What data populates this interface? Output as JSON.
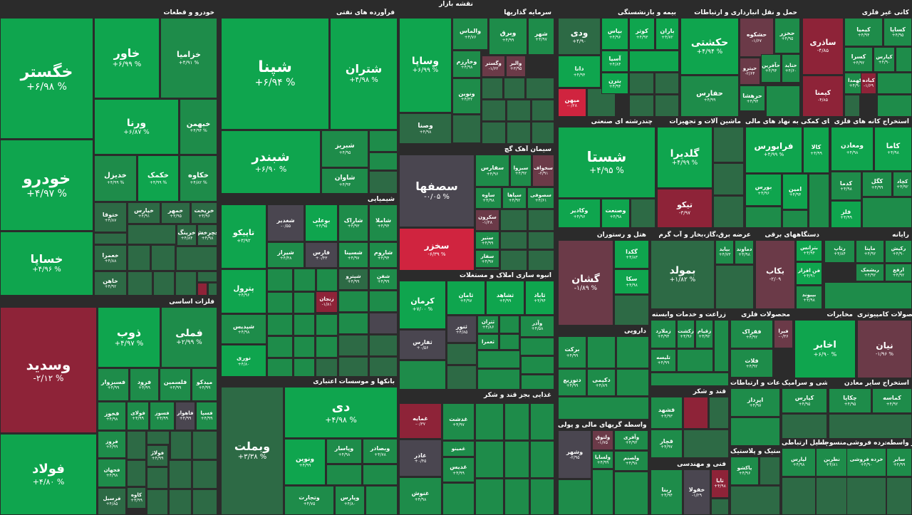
{
  "map_title": "نقشه بازار",
  "colors": {
    "up_strong": "#0fa54e",
    "up_medium": "#1e8c4a",
    "up_weak": "#2d6a45",
    "flat": "#4a4650",
    "down_weak": "#6b3a48",
    "down_medium": "#8e2338",
    "down_strong": "#d0243f",
    "background": "#2b2b2b"
  },
  "chart_data": {
    "type": "heatmap",
    "title": "نقشه بازار",
    "sectors": [
      {
        "name": "خودرو و قطعات",
        "symbols": [
          {
            "name": "خگستر",
            "change": "+۶/۹۸ %"
          },
          {
            "name": "خودرو",
            "change": "+۴/۹۷ %"
          },
          {
            "name": "خساپا",
            "change": "+۴/۹۶ %"
          },
          {
            "name": "خاور",
            "change": "+۶/۹۹ %"
          },
          {
            "name": "خزامیا",
            "change": "+۴/۹۱ %"
          },
          {
            "name": "ورنا",
            "change": "+۶/۸۷ %"
          },
          {
            "name": "خبهمن",
            "change": "+۴/۹۴ %"
          },
          {
            "name": "خدیزل",
            "change": "+۴/۹۹ %"
          },
          {
            "name": "خکمک",
            "change": "+۴/۹۹ %"
          },
          {
            "name": "خکاوه",
            "change": "+۴/۸۲ %"
          },
          {
            "name": "ختوقا",
            "change": "+۴/۸۷"
          },
          {
            "name": "خپارس",
            "change": "+۴/۹۱"
          },
          {
            "name": "خمهر",
            "change": "+۴/۹۵"
          },
          {
            "name": "خریخت",
            "change": "+۴/۹۶"
          },
          {
            "name": "خچرخش",
            "change": "+۴/۹۸"
          },
          {
            "name": "خرینگ",
            "change": "+۴/۸۴"
          },
          {
            "name": "خعمرا",
            "change": "+۴/۸۸"
          },
          {
            "name": "خاهن",
            "change": "+۴/۹۲"
          }
        ]
      },
      {
        "name": "فرآورده های نفتی",
        "symbols": [
          {
            "name": "شپنا",
            "change": "+۶/۹۴ %"
          },
          {
            "name": "شبندر",
            "change": "+۶/۹۰ %"
          },
          {
            "name": "شتران",
            "change": "+۴/۹۸ %"
          },
          {
            "name": "شبریز",
            "change": "+۴/۹۵"
          },
          {
            "name": "شاوان",
            "change": "+۴/۹۴"
          }
        ]
      },
      {
        "name": "سرمایه گذاریها",
        "symbols": [
          {
            "name": "وساپا",
            "change": "+۶/۹۹ %"
          },
          {
            "name": "وصنا",
            "change": "+۴/۹۸"
          },
          {
            "name": "والماس",
            "change": "+۴/۷۶"
          },
          {
            "name": "وبرق",
            "change": "+۴/۹۹"
          },
          {
            "name": "شهر",
            "change": "+۴/۹۷"
          },
          {
            "name": "وخارزم",
            "change": "+۴/۹۸"
          },
          {
            "name": "وگستر",
            "change": "-۱/۶۲"
          },
          {
            "name": "والبر",
            "change": "+۳/۹۵"
          },
          {
            "name": "ونوین",
            "change": "+۴/۳۲"
          },
          {
            "name": "صبا",
            "change": "+۴/۱۶"
          }
        ]
      },
      {
        "name": "بیمه و بازنشستگی",
        "symbols": [
          {
            "name": "ودی",
            "change": "+۴/۹۰"
          },
          {
            "name": "بپاس",
            "change": "+۴/۹۶"
          },
          {
            "name": "کوثر",
            "change": "+۴/۹۳"
          },
          {
            "name": "باران",
            "change": "+۴/۷۲"
          },
          {
            "name": "آسیا",
            "change": "+۴/۸۴"
          },
          {
            "name": "دانا",
            "change": "+۴/۹۴"
          },
          {
            "name": "بترن",
            "change": "+۴/۹۴"
          },
          {
            "name": "میهن",
            "change": "-۰/۲۸"
          }
        ]
      },
      {
        "name": "حمل و نقل انبارداری و ارتباطات",
        "symbols": [
          {
            "name": "حکشتی",
            "change": "+۴/۹۴ %"
          },
          {
            "name": "حفارس",
            "change": "+۴/۹۹"
          },
          {
            "name": "حشکوه",
            "change": "-۱/۶۷"
          },
          {
            "name": "حخزر",
            "change": "+۴/۹۵"
          },
          {
            "name": "حتاید",
            "change": "+۴/۶۰"
          },
          {
            "name": "حآفرین",
            "change": "+۴/۹۴"
          },
          {
            "name": "حپترو",
            "change": "-۲/۶۴"
          },
          {
            "name": "حرهشا",
            "change": "+۴/۹۴"
          }
        ]
      },
      {
        "name": "کانی غیر فلزی",
        "symbols": [
          {
            "name": "ساذری",
            "change": "-۴/۸۵"
          },
          {
            "name": "کیمنا",
            "change": "-۴/۸۵"
          },
          {
            "name": "کیمیا",
            "change": "+۴/۹۴"
          },
          {
            "name": "کساپا",
            "change": "+۴/۹۵"
          },
          {
            "name": "کسرا",
            "change": "+۴/۹۲"
          },
          {
            "name": "کهمدا",
            "change": "+۴/۹۰"
          },
          {
            "name": "کپارس",
            "change": "+۴/۹۰"
          },
          {
            "name": "کباده",
            "change": "-۱/۶۹"
          }
        ]
      },
      {
        "name": "سیمان آهک گچ",
        "symbols": [
          {
            "name": "سصفها",
            "change": "-۰/۰۵ %"
          },
          {
            "name": "سخزر",
            "change": "-۶/۳۹ %"
          },
          {
            "name": "سفارس",
            "change": "+۴/۹۶"
          },
          {
            "name": "سبزوا",
            "change": "+۴/۹۲"
          },
          {
            "name": "سخواف",
            "change": "-۲/۹۱"
          },
          {
            "name": "ساوه",
            "change": "+۴/۹۸"
          },
          {
            "name": "سپاها",
            "change": "+۴/۹۲"
          },
          {
            "name": "سصوفی",
            "change": "+۴/۶۱"
          },
          {
            "name": "سکرون",
            "change": "-۱/۲۸"
          },
          {
            "name": "ستیر",
            "change": "+۴/۹۹"
          },
          {
            "name": "سفار",
            "change": "+۴/۹۷"
          }
        ]
      },
      {
        "name": "شیمیایی",
        "symbols": [
          {
            "name": "تاپیکو",
            "change": "+۳/۹۲"
          },
          {
            "name": "شغدیر",
            "change": "-۰/۵۵"
          },
          {
            "name": "بوعلی",
            "change": "+۴/۹۵"
          },
          {
            "name": "شاراک",
            "change": "+۴/۹۳"
          },
          {
            "name": "شاملا",
            "change": "+۴/۹۴"
          },
          {
            "name": "شیراز",
            "change": "+۴/۴۸"
          },
          {
            "name": "فارس",
            "change": "+۰/۴۳"
          },
          {
            "name": "شسینا",
            "change": "+۴/۹۷"
          },
          {
            "name": "شاروم",
            "change": "+۴/۹۴"
          },
          {
            "name": "شپترو",
            "change": "+۴/۹۹"
          },
          {
            "name": "شفن",
            "change": "+۴/۹۹"
          },
          {
            "name": "پترول",
            "change": "+۴/۹۶"
          },
          {
            "name": "شپدیس",
            "change": "+۴/۹۸"
          },
          {
            "name": "نوری",
            "change": "+۴/۸۰"
          },
          {
            "name": "زنجان",
            "change": "-۱/۸۱"
          }
        ]
      },
      {
        "name": "انبوه سازی املاک و مستغلات",
        "symbols": [
          {
            "name": "کرمان",
            "change": "+۷/۰۰ %"
          },
          {
            "name": "ثامان",
            "change": "+۴/۹۷"
          },
          {
            "name": "ثشاهد",
            "change": "+۴/۹۹"
          },
          {
            "name": "ثاباد",
            "change": "+۴/۹۴"
          },
          {
            "name": "ثنور",
            "change": "+۴/۸۵"
          },
          {
            "name": "ثتران",
            "change": "+۴/۸۶"
          },
          {
            "name": "وآذر",
            "change": "+۴/۵۸"
          },
          {
            "name": "ثفارس",
            "change": "+۰/۵۶"
          },
          {
            "name": "ثعمرا",
            "change": "+۴/۸۶"
          }
        ]
      },
      {
        "name": "بانکها و موسسات اعتباری",
        "symbols": [
          {
            "name": "دی",
            "change": "+۴/۹۸ %"
          },
          {
            "name": "وبملت",
            "change": "+۳/۳۸ %"
          },
          {
            "name": "وتجارت",
            "change": "+۴/۷۵"
          },
          {
            "name": "ونوین",
            "change": "+۴/۹۹"
          },
          {
            "name": "وپاسار",
            "change": "+۴/۹۸"
          },
          {
            "name": "وبصادر",
            "change": "+۴/۷۸"
          },
          {
            "name": "وپارس",
            "change": "+۴/۸۰"
          }
        ]
      },
      {
        "name": "چندرشته ای صنعتی",
        "symbols": [
          {
            "name": "شستا",
            "change": "+۴/۹۵ %"
          },
          {
            "name": "وکادیر",
            "change": "+۴/۹۶"
          },
          {
            "name": "وصنعت",
            "change": "+۴/۹۸"
          }
        ]
      },
      {
        "name": "ماشین آلات و تجهیزات",
        "symbols": [
          {
            "name": "گلدیرا",
            "change": "+۴/۹۹ %"
          },
          {
            "name": "تیکو",
            "change": "-۳/۹۷"
          },
          {
            "name": "فرابورس",
            "change": "+۴/۹۹"
          }
        ]
      },
      {
        "name": "فعالیتهای کمکی به نهاد های مالی",
        "symbols": [
          {
            "name": "فرابورس",
            "change": "+۴/۹۹ %"
          },
          {
            "name": "کالا",
            "change": "+۴/۹۹"
          },
          {
            "name": "امین",
            "change": "+۴/۹۴"
          },
          {
            "name": "بورس",
            "change": "+۴/۹۶"
          }
        ]
      },
      {
        "name": "استخراج کانه های فلزی",
        "symbols": [
          {
            "name": "ومعادن",
            "change": "+۴/۹۸"
          },
          {
            "name": "کاما",
            "change": "+۴/۹۸"
          },
          {
            "name": "کگل",
            "change": "+۴/۹۹"
          },
          {
            "name": "کچاد",
            "change": "+۴/۹۲"
          },
          {
            "name": "کدما",
            "change": "+۴/۹۸"
          },
          {
            "name": "فلز",
            "change": "+۴/۹۹"
          }
        ]
      },
      {
        "name": "فلزات اساسی",
        "symbols": [
          {
            "name": "وسدید",
            "change": "-۲/۱۲ %"
          },
          {
            "name": "فولاد",
            "change": "+۴/۸۰ %"
          },
          {
            "name": "ذوب",
            "change": "+۴/۹۷ %"
          },
          {
            "name": "فملی",
            "change": "+۲/۹۹ %"
          },
          {
            "name": "فسبزوار",
            "change": "+۴/۹۹"
          },
          {
            "name": "فرود",
            "change": "+۴/۹۹"
          },
          {
            "name": "فلسمین",
            "change": "+۴/۹۹"
          },
          {
            "name": "میدکو",
            "change": "+۴/۹۹"
          },
          {
            "name": "فخوز",
            "change": "+۴/۹۸"
          },
          {
            "name": "فولای",
            "change": "+۴/۹۹"
          },
          {
            "name": "فسوز",
            "change": "+۴/۹۹"
          },
          {
            "name": "فاهواز",
            "change": "+۴/۹۹"
          },
          {
            "name": "فسپا",
            "change": "+۴/۹۹"
          },
          {
            "name": "فروز",
            "change": "+۴/۹۹"
          },
          {
            "name": "فجهان",
            "change": "+۴/۹۸"
          },
          {
            "name": "فولاژ",
            "change": "+۴/۹۹"
          },
          {
            "name": "کاوه",
            "change": "+۴/۹۹"
          },
          {
            "name": "فرسیل",
            "change": "+۴/۸۵"
          }
        ]
      },
      {
        "name": "هتل و رستوران",
        "symbols": [
          {
            "name": "گشان",
            "change": "-۱/۸۹ %"
          },
          {
            "name": "گکدا",
            "change": "+۴/۸۳"
          },
          {
            "name": "سکا",
            "change": "+۴/۹۸"
          }
        ]
      },
      {
        "name": "عرضه برق،گاز،بخار و آب گرم",
        "symbols": [
          {
            "name": "بمولد",
            "change": "+۱/۸۲ %"
          },
          {
            "name": "بپاید",
            "change": "+۴/۷۳"
          },
          {
            "name": "دماوند",
            "change": "+۴/۹۸"
          }
        ]
      },
      {
        "name": "دستگاههای برقی",
        "symbols": [
          {
            "name": "بکاب",
            "change": "-۲/۰۹"
          },
          {
            "name": "بترانس",
            "change": "+۴/۹۴"
          },
          {
            "name": "فن افزار",
            "change": "+۴/۹۱"
          },
          {
            "name": "بپیوند",
            "change": "+۴/۹۸"
          }
        ]
      },
      {
        "name": "رایانه",
        "symbols": [
          {
            "name": "رتاپ",
            "change": "+۴/۸۴"
          },
          {
            "name": "ماپنا",
            "change": "+۴/۹۲"
          },
          {
            "name": "رکیش",
            "change": "+۴/۹۰"
          },
          {
            "name": "ارفع",
            "change": "+۴/۹۲"
          },
          {
            "name": "ریشمک",
            "change": "+۴/۹۲"
          }
        ]
      },
      {
        "name": "دارویی",
        "symbols": [
          {
            "name": "برکت",
            "change": "+۴/۹۹"
          },
          {
            "name": "دتوزیع",
            "change": "+۴/۹۹"
          },
          {
            "name": "دکیمی",
            "change": "+۴/۸۹"
          }
        ]
      },
      {
        "name": "زراعت و خدمات وابسته",
        "symbols": [
          {
            "name": "زملارد",
            "change": "+۴/۹۴"
          },
          {
            "name": "زکشت",
            "change": "+۴/۹۶"
          },
          {
            "name": "زقیام",
            "change": "+۴/۹۲"
          },
          {
            "name": "تلیسه",
            "change": "+۴/۹۹"
          }
        ]
      },
      {
        "name": "محصولات فلزی",
        "symbols": [
          {
            "name": "فقزاک",
            "change": "+۴/۹۲"
          },
          {
            "name": "فیرا",
            "change": "-۰/۳۶"
          },
          {
            "name": "فلات",
            "change": "+۴/۹۲"
          }
        ]
      },
      {
        "name": "مخابرات",
        "symbols": [
          {
            "name": "اخابر",
            "change": "+۶/۹۰ %"
          }
        ]
      },
      {
        "name": "محصولات کامپیوتری",
        "symbols": [
          {
            "name": "نیان",
            "change": "-۱/۹۶ %"
          }
        ]
      },
      {
        "name": "قند و شکر",
        "symbols": [
          {
            "name": "قشهد",
            "change": "+۴/۹۳"
          },
          {
            "name": "قچار",
            "change": "+۴/۹۷"
          }
        ]
      },
      {
        "name": "غذایی بجز قند و شکر",
        "symbols": [
          {
            "name": "غمایه",
            "change": "-۰/۳۷"
          },
          {
            "name": "غاذر",
            "change": "+۰/۴۵"
          },
          {
            "name": "غنوش",
            "change": "+۴/۹۸"
          },
          {
            "name": "غدشت",
            "change": "+۴/۹۷"
          },
          {
            "name": "غمینو",
            "change": "+۴/۹۲"
          },
          {
            "name": "غدیس",
            "change": "+۴/۹۹"
          }
        ]
      },
      {
        "name": "واسطه گریهای مالی و پولی",
        "symbols": [
          {
            "name": "وشهر",
            "change": "-۲/۹۵"
          },
          {
            "name": "ولتوق",
            "change": "-۱/۷۵"
          },
          {
            "name": "ولساپا",
            "change": "+۴/۹۹"
          },
          {
            "name": "ولصنم",
            "change": "+۴/۹۸"
          },
          {
            "name": "وآفری",
            "change": "+۴/۹۳"
          }
        ]
      },
      {
        "name": "فنی و مهندسی",
        "symbols": [
          {
            "name": "ربنا",
            "change": "+۴/۹۴"
          },
          {
            "name": "خفولا",
            "change": "-۱/۲۹"
          },
          {
            "name": "تایا",
            "change": "+۴/۹۸"
          }
        ]
      },
      {
        "name": "کاشی و سرامیک",
        "symbols": [
          {
            "name": "کپارس",
            "change": "+۴/۹۵"
          }
        ]
      },
      {
        "name": "استخراج سایر معادن",
        "symbols": [
          {
            "name": "چکاپا",
            "change": "+۴/۹۵"
          },
          {
            "name": "کماسه",
            "change": "+۴/۹۲"
          }
        ]
      },
      {
        "name": "لاستیک و پلاستیک",
        "symbols": [
          {
            "name": "پاکشو",
            "change": "+۴/۹۶"
          }
        ]
      },
      {
        "name": "وسایل ارتباطی",
        "symbols": [
          {
            "name": "لپارس",
            "change": "+۴/۹۸"
          }
        ]
      },
      {
        "name": "اطلاعات و ارتباطات",
        "symbols": [
          {
            "name": "اپرداز",
            "change": "+۴/۹۷"
          }
        ]
      },
      {
        "name": "منسوجات",
        "symbols": [
          {
            "name": "نطرین",
            "change": "+۴/۸۱"
          }
        ]
      },
      {
        "name": "خرده فروشی",
        "symbols": [
          {
            "name": "خرده فروشی",
            "change": "+۴/۹۰"
          }
        ]
      },
      {
        "name": "سایر واسطه",
        "symbols": [
          {
            "name": "سایر",
            "change": "+۴/۹۹"
          }
        ]
      }
    ]
  }
}
